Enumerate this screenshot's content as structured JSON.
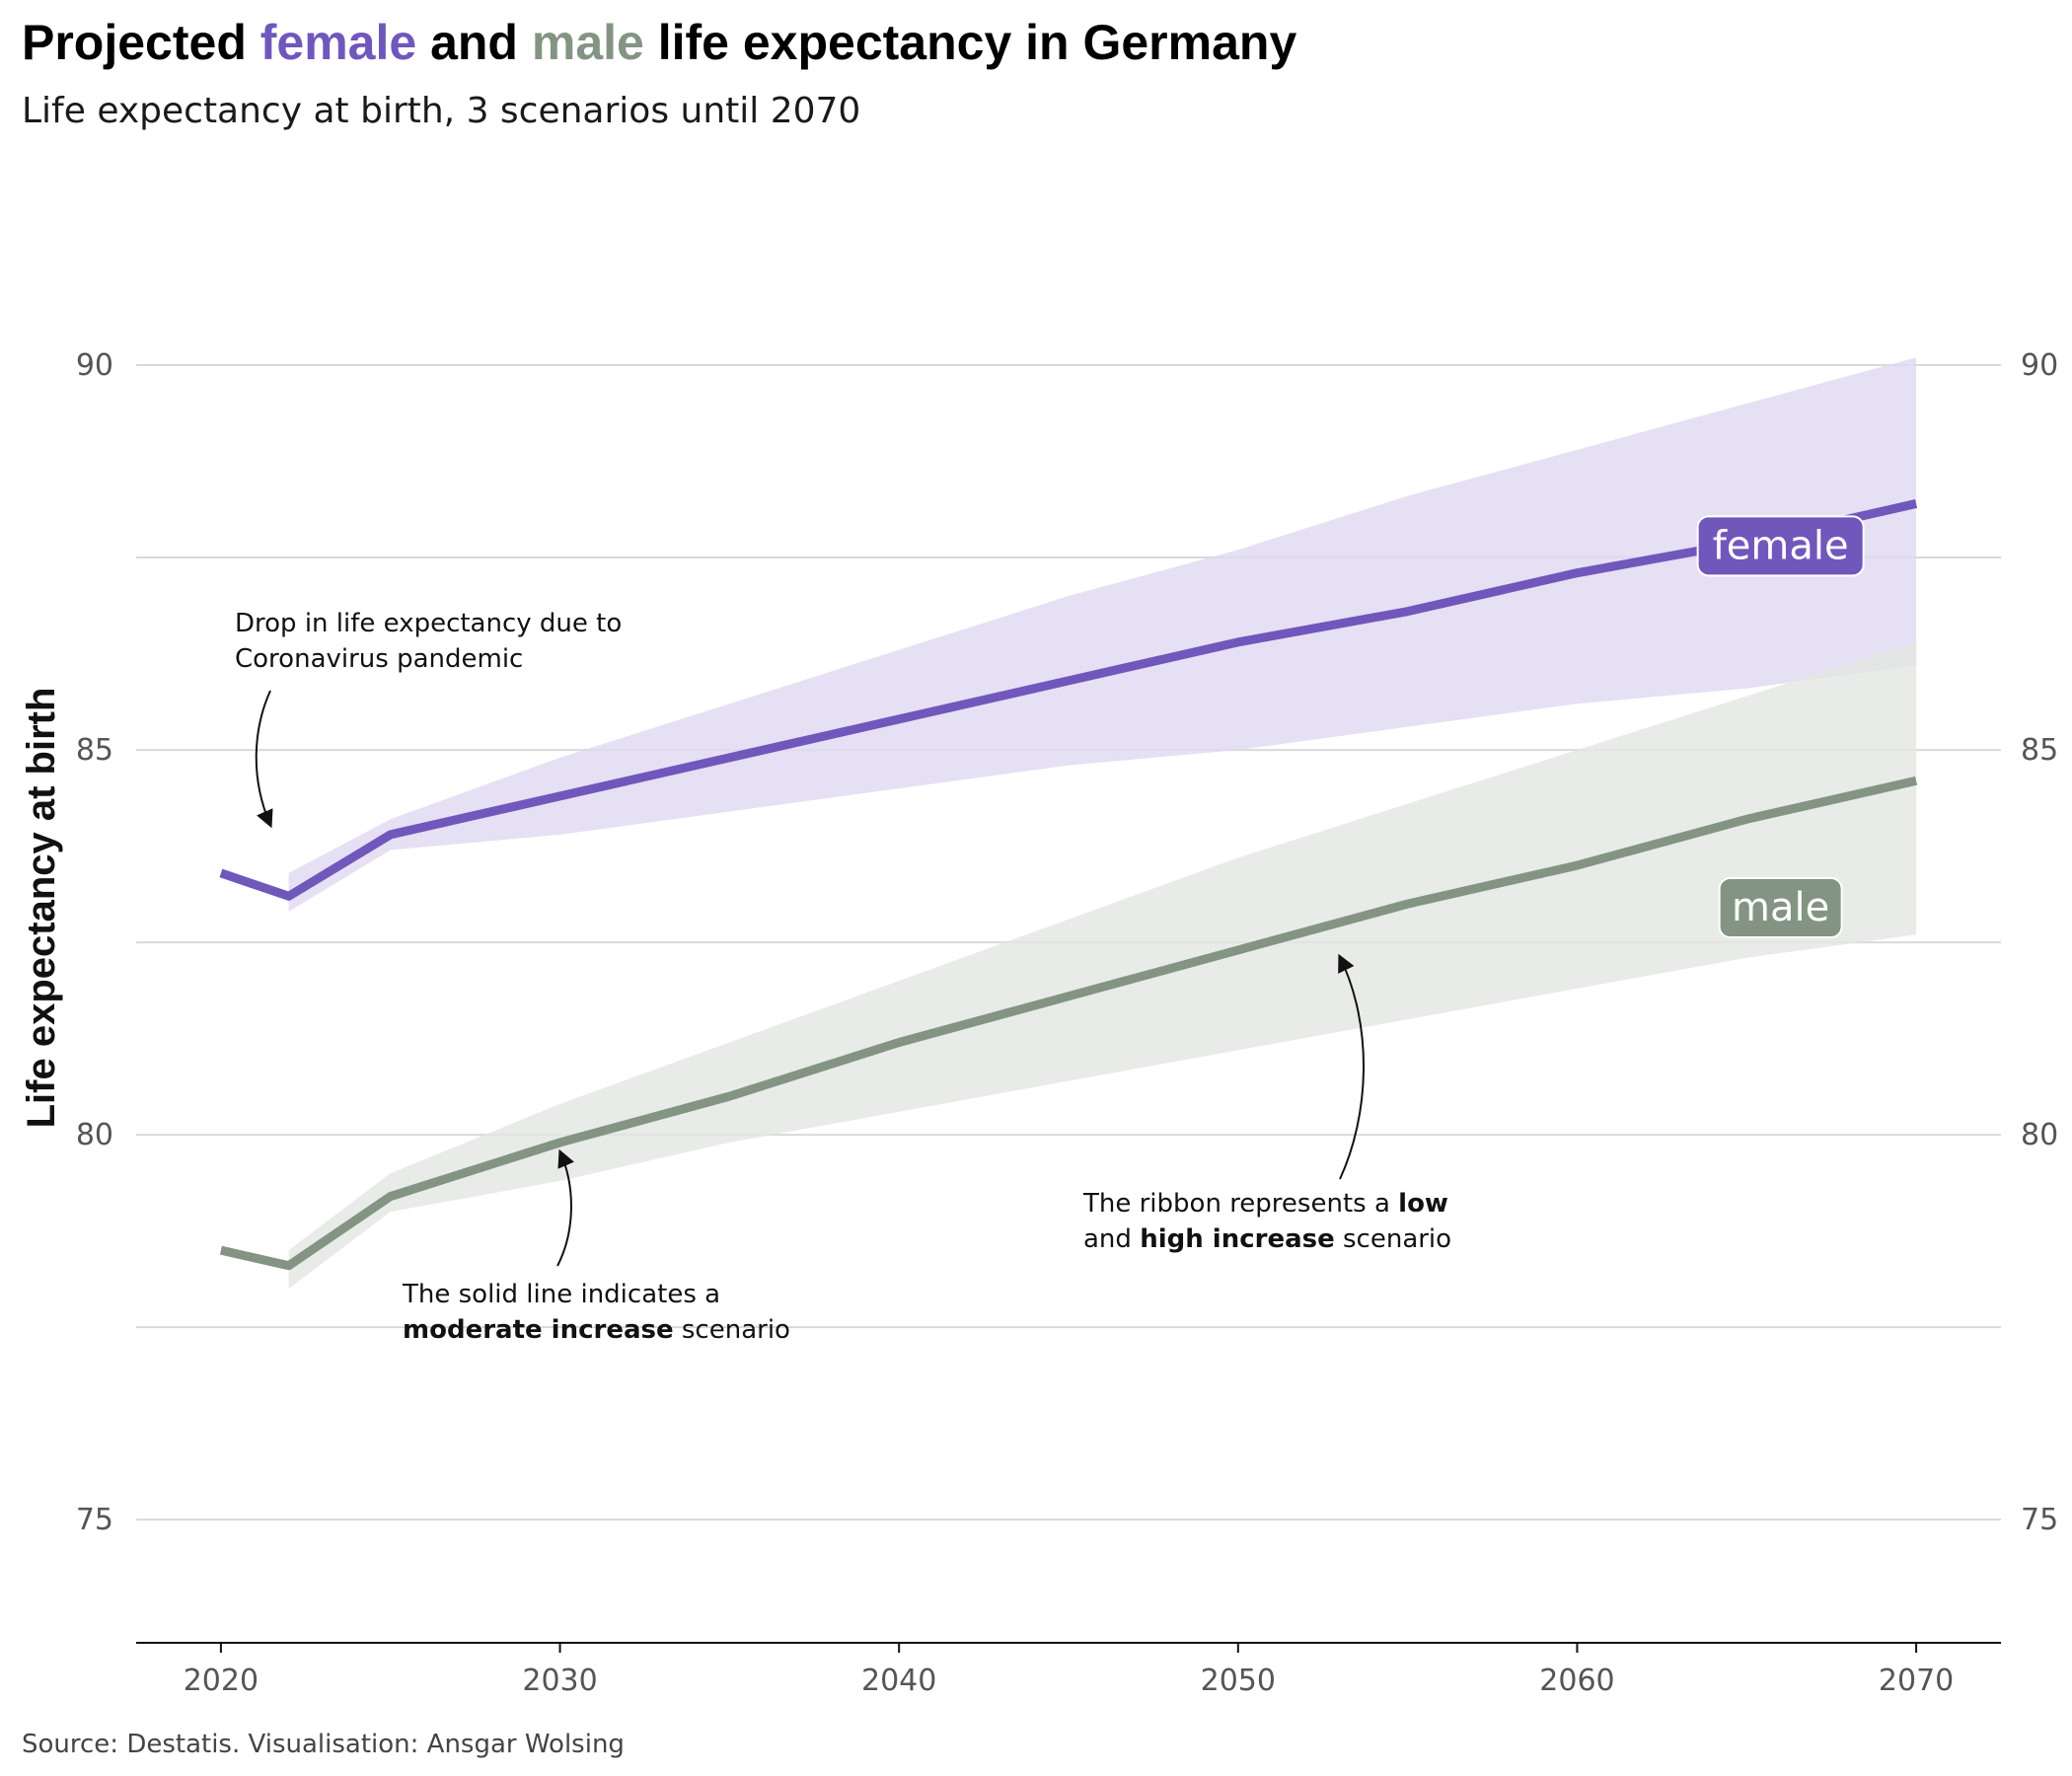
{
  "title": {
    "prefix": "Projected ",
    "female": "female",
    "middle": " and ",
    "male": "male",
    "suffix": " life expectancy in Germany"
  },
  "subtitle": "Life expectancy at birth, 3 scenarios until 2070",
  "caption": "Source: Destatis. Visualisation: Ansgar Wolsing",
  "colors": {
    "female": "#7057BC",
    "female_ribbon": "#DFD9F0",
    "male": "#849483",
    "male_ribbon": "#E3E7E2",
    "overlap": "#D2D2D6",
    "grid": "#D9D9D9"
  },
  "chart_data": {
    "type": "line",
    "xlabel": "",
    "ylabel": "Life expectancy at birth",
    "xlim": [
      2017.5,
      2072.5
    ],
    "ylim": [
      73.4,
      92.5
    ],
    "x_ticks": [
      "2020",
      "2030",
      "2040",
      "2050",
      "2060",
      "2070"
    ],
    "y_ticks": [
      "75",
      "80",
      "85",
      "90"
    ],
    "grid": true,
    "secondary_y_axis": true,
    "legend": "direct labels on series",
    "series": [
      {
        "name": "female",
        "color": "#7057BC",
        "label": "female",
        "moderate": {
          "x": [
            2020,
            2022,
            2025,
            2030,
            2035,
            2040,
            2045,
            2050,
            2055,
            2060,
            2065,
            2070
          ],
          "y": [
            83.4,
            83.1,
            83.9,
            84.4,
            84.9,
            85.4,
            85.9,
            86.4,
            86.8,
            87.3,
            87.7,
            88.2
          ]
        },
        "low": {
          "x": [
            2022,
            2025,
            2030,
            2035,
            2040,
            2045,
            2050,
            2055,
            2060,
            2065,
            2070
          ],
          "y": [
            82.9,
            83.7,
            83.9,
            84.2,
            84.5,
            84.8,
            85.0,
            85.3,
            85.6,
            85.8,
            86.1
          ]
        },
        "high": {
          "x": [
            2022,
            2025,
            2030,
            2035,
            2040,
            2045,
            2050,
            2055,
            2060,
            2065,
            2070
          ],
          "y": [
            83.4,
            84.1,
            84.9,
            85.6,
            86.3,
            87.0,
            87.6,
            88.3,
            88.9,
            89.5,
            90.1
          ]
        }
      },
      {
        "name": "male",
        "color": "#849483",
        "label": "male",
        "moderate": {
          "x": [
            2020,
            2022,
            2025,
            2030,
            2035,
            2040,
            2045,
            2050,
            2055,
            2060,
            2065,
            2070
          ],
          "y": [
            78.5,
            78.3,
            79.2,
            79.9,
            80.5,
            81.2,
            81.8,
            82.4,
            83.0,
            83.5,
            84.1,
            84.6
          ]
        },
        "low": {
          "x": [
            2022,
            2025,
            2030,
            2035,
            2040,
            2045,
            2050,
            2055,
            2060,
            2065,
            2070
          ],
          "y": [
            78.0,
            79.0,
            79.4,
            79.9,
            80.3,
            80.7,
            81.1,
            81.5,
            81.9,
            82.3,
            82.6
          ]
        },
        "high": {
          "x": [
            2022,
            2025,
            2030,
            2035,
            2040,
            2045,
            2050,
            2055,
            2060,
            2065,
            2070
          ],
          "y": [
            78.5,
            79.5,
            80.4,
            81.2,
            82.0,
            82.8,
            83.6,
            84.3,
            85.0,
            85.7,
            86.4
          ]
        }
      }
    ],
    "annotations": [
      {
        "id": "covid",
        "lines": [
          [
            {
              "t": "Drop in life expectancy due to",
              "b": false
            }
          ],
          [
            {
              "t": "Coronavirus pandemic",
              "b": false
            }
          ]
        ]
      },
      {
        "id": "solid",
        "lines": [
          [
            {
              "t": "The solid line indicates a",
              "b": false
            }
          ],
          [
            {
              "t": "moderate increase",
              "b": true
            },
            {
              "t": " scenario",
              "b": false
            }
          ]
        ]
      },
      {
        "id": "ribbon",
        "lines": [
          [
            {
              "t": "The ribbon represents a ",
              "b": false
            },
            {
              "t": "low",
              "b": true
            }
          ],
          [
            {
              "t": "and ",
              "b": false
            },
            {
              "t": "high increase",
              "b": true
            },
            {
              "t": " scenario",
              "b": false
            }
          ]
        ]
      }
    ]
  }
}
